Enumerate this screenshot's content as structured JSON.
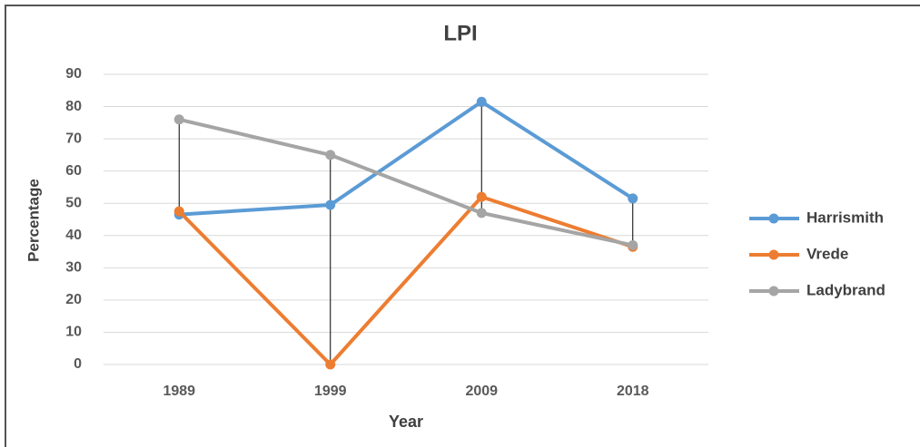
{
  "chart_data": {
    "type": "line",
    "title": "LPI",
    "x_label": "Year",
    "y_label": "Percentage",
    "categories": [
      "1989",
      "1999",
      "2009",
      "2018"
    ],
    "series": [
      {
        "name": "Harrismith",
        "color": "#5b9bd5",
        "values": [
          46.5,
          49.5,
          81.5,
          51.5
        ]
      },
      {
        "name": "Vrede",
        "color": "#ed7d31",
        "values": [
          47.5,
          0,
          52,
          36.5
        ]
      },
      {
        "name": "Ladybrand",
        "color": "#a5a5a5",
        "values": [
          76,
          65,
          47,
          37
        ]
      }
    ],
    "ylim": [
      0,
      90
    ],
    "yticks": [
      0,
      10,
      20,
      30,
      40,
      50,
      60,
      70,
      80,
      90
    ],
    "grid": true,
    "high_low_lines": true,
    "legend": "right"
  }
}
